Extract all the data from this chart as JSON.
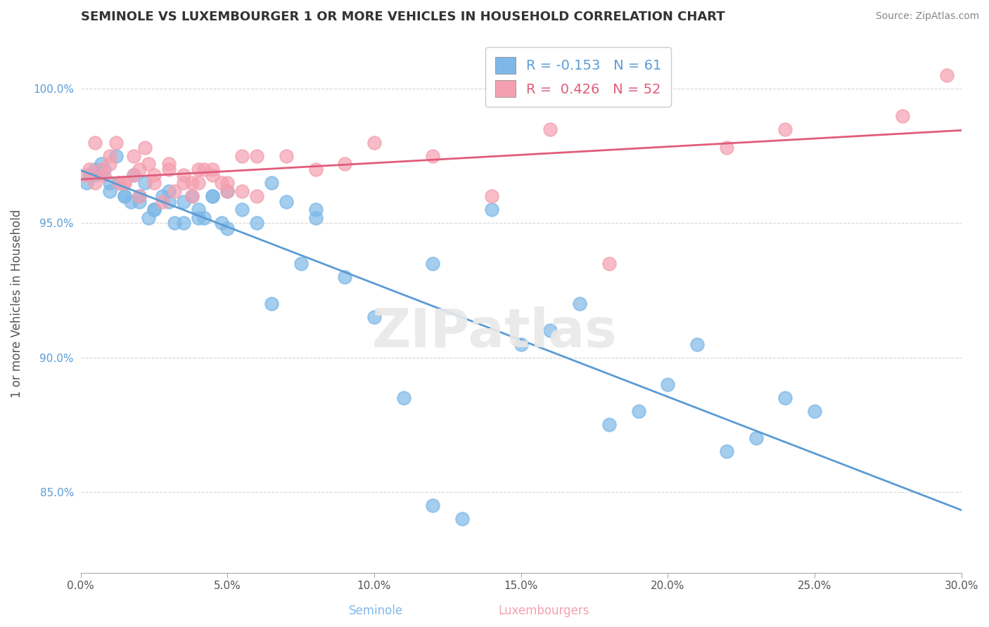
{
  "title": "SEMINOLE VS LUXEMBOURGER 1 OR MORE VEHICLES IN HOUSEHOLD CORRELATION CHART",
  "source": "Source: ZipAtlas.com",
  "xlabel_seminole": "Seminole",
  "xlabel_luxembourgers": "Luxembourgers",
  "ylabel": "1 or more Vehicles in Household",
  "xlim": [
    0.0,
    30.0
  ],
  "ylim": [
    82.0,
    102.0
  ],
  "yticks": [
    85.0,
    90.0,
    95.0,
    100.0
  ],
  "xticks": [
    0.0,
    5.0,
    10.0,
    15.0,
    20.0,
    25.0,
    30.0
  ],
  "R_seminole": -0.153,
  "N_seminole": 61,
  "R_luxembourger": 0.426,
  "N_luxembourger": 52,
  "color_seminole": "#7EB8E8",
  "color_luxembourger": "#F4A0B0",
  "line_color_seminole": "#5B9BD5",
  "line_color_luxembourger": "#E05C7A",
  "background_color": "#FFFFFF",
  "seminole_x": [
    0.2,
    0.5,
    0.8,
    1.0,
    1.2,
    1.5,
    1.8,
    2.0,
    2.2,
    2.5,
    2.8,
    3.0,
    3.2,
    3.5,
    3.8,
    4.0,
    4.2,
    4.5,
    4.8,
    5.0,
    5.5,
    6.0,
    6.5,
    7.0,
    7.5,
    8.0,
    9.0,
    10.0,
    11.0,
    12.0,
    13.0,
    14.0,
    15.0,
    16.0,
    17.0,
    18.0,
    19.0,
    20.0,
    21.0,
    22.0,
    23.0,
    24.0,
    25.0,
    1.5,
    2.5,
    3.5,
    0.5,
    1.0,
    2.0,
    3.0,
    4.0,
    5.0,
    8.0,
    12.0,
    0.3,
    0.7,
    1.3,
    1.7,
    2.3,
    4.5,
    6.5
  ],
  "seminole_y": [
    96.5,
    96.8,
    97.0,
    96.2,
    97.5,
    96.0,
    96.8,
    95.8,
    96.5,
    95.5,
    96.0,
    96.2,
    95.0,
    95.8,
    96.0,
    95.5,
    95.2,
    96.0,
    95.0,
    94.8,
    95.5,
    95.0,
    96.5,
    95.8,
    93.5,
    95.2,
    93.0,
    91.5,
    88.5,
    84.5,
    84.0,
    95.5,
    90.5,
    91.0,
    92.0,
    87.5,
    88.0,
    89.0,
    90.5,
    86.5,
    87.0,
    88.5,
    88.0,
    96.0,
    95.5,
    95.0,
    97.0,
    96.5,
    96.0,
    95.8,
    95.2,
    96.2,
    95.5,
    93.5,
    96.8,
    97.2,
    96.5,
    95.8,
    95.2,
    96.0,
    92.0
  ],
  "luxembourger_x": [
    0.3,
    0.5,
    0.8,
    1.0,
    1.2,
    1.5,
    1.8,
    2.0,
    2.2,
    2.5,
    2.8,
    3.0,
    3.2,
    3.5,
    3.8,
    4.0,
    4.2,
    4.5,
    4.8,
    5.0,
    5.5,
    6.0,
    7.0,
    8.0,
    9.0,
    10.0,
    12.0,
    14.0,
    16.0,
    18.0,
    22.0,
    24.0,
    28.0,
    29.5,
    0.5,
    1.0,
    1.5,
    2.0,
    2.5,
    3.0,
    3.5,
    4.0,
    5.0,
    6.0,
    0.2,
    0.7,
    1.3,
    1.8,
    2.3,
    3.8,
    4.5,
    5.5
  ],
  "luxembourger_y": [
    97.0,
    96.5,
    96.8,
    97.2,
    98.0,
    96.5,
    97.5,
    96.0,
    97.8,
    96.5,
    95.8,
    97.0,
    96.2,
    96.8,
    96.0,
    96.5,
    97.0,
    96.8,
    96.5,
    96.2,
    97.5,
    96.0,
    97.5,
    97.0,
    97.2,
    98.0,
    97.5,
    96.0,
    98.5,
    93.5,
    97.8,
    98.5,
    99.0,
    100.5,
    98.0,
    97.5,
    96.5,
    97.0,
    96.8,
    97.2,
    96.5,
    97.0,
    96.5,
    97.5,
    96.8,
    97.0,
    96.5,
    96.8,
    97.2,
    96.5,
    97.0,
    96.2
  ]
}
